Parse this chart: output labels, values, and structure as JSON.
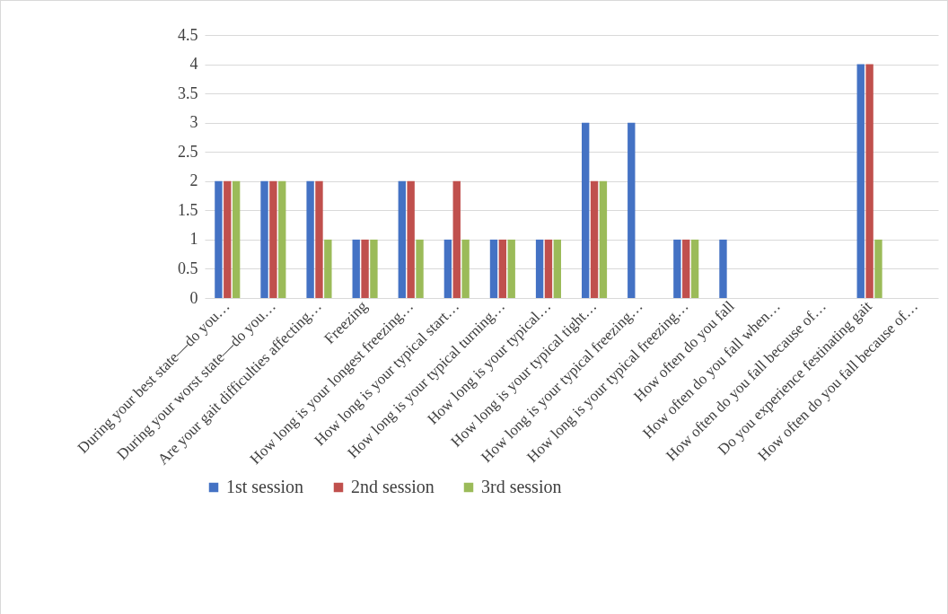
{
  "chart_data": {
    "type": "bar",
    "categories": [
      "During your best state—do you…",
      "During your worst state—do you…",
      "Are your gait difficulties affecting…",
      "Freezing",
      "How long is your longest freezing…",
      "How long is your typical start…",
      "How long is your typical turning…",
      "How long is your typical…",
      "How long is your typical tight…",
      "How long is your typical freezing…",
      "How long is your typical freezing…",
      "How often do you fall",
      "How often do you fall when…",
      "How often do you fall because of…",
      "Do you experience festinating gait",
      "How often do you fall because of…"
    ],
    "series": [
      {
        "name": "1st session",
        "color": "#4472c4",
        "values": [
          2,
          2,
          2,
          1,
          2,
          1,
          1,
          1,
          3,
          3,
          1,
          1,
          0,
          0,
          4,
          0
        ]
      },
      {
        "name": "2nd session",
        "color": "#c0504d",
        "values": [
          2,
          2,
          2,
          1,
          2,
          2,
          1,
          1,
          2,
          0,
          1,
          0,
          0,
          0,
          4,
          0
        ]
      },
      {
        "name": "3rd session",
        "color": "#9bbb59",
        "values": [
          2,
          2,
          1,
          1,
          1,
          1,
          1,
          1,
          2,
          0,
          1,
          0,
          0,
          0,
          1,
          0
        ]
      }
    ],
    "ylim": [
      0,
      4.5
    ],
    "yticks": [
      0,
      0.5,
      1,
      1.5,
      2,
      2.5,
      3,
      3.5,
      4,
      4.5
    ],
    "grid": "y",
    "legend": "bottom"
  }
}
